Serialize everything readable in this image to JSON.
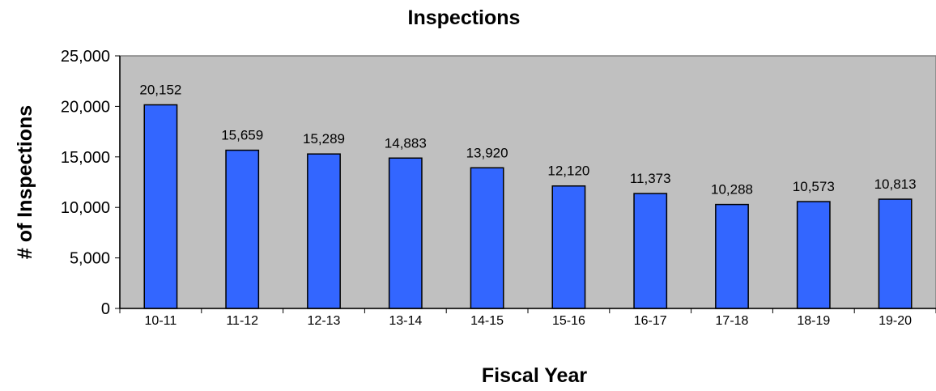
{
  "chart_data": {
    "type": "bar",
    "title": "Inspections",
    "xlabel": "Fiscal Year",
    "ylabel": "# of Inspections",
    "categories": [
      "10-11",
      "11-12",
      "12-13",
      "13-14",
      "14-15",
      "15-16",
      "16-17",
      "17-18",
      "18-19",
      "19-20"
    ],
    "values": [
      20152,
      15659,
      15289,
      14883,
      13920,
      12120,
      11373,
      10288,
      10573,
      10813
    ],
    "data_labels": [
      "20,152",
      "15,659",
      "15,289",
      "14,883",
      "13,920",
      "12,120",
      "11,373",
      "10,288",
      "10,573",
      "10,813"
    ],
    "ylim": [
      0,
      25000
    ],
    "yticks": [
      0,
      5000,
      10000,
      15000,
      20000,
      25000
    ],
    "ytick_labels": [
      "0",
      "5,000",
      "10,000",
      "15,000",
      "20,000",
      "25,000"
    ],
    "grid": false,
    "legend": "none",
    "colors": {
      "bar_fill": "#3366ff",
      "bar_stroke": "#000000",
      "plot_background": "#c0c0c0"
    }
  }
}
